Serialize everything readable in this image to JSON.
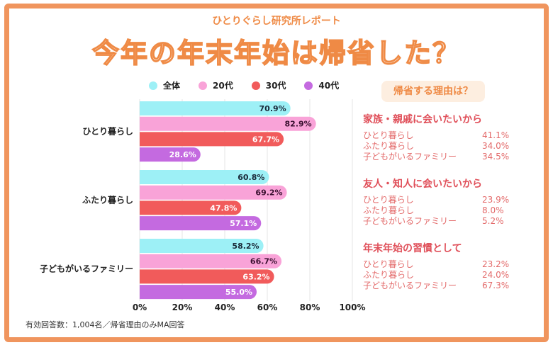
{
  "header": {
    "subtitle": "ひとりぐらし研究所レポート",
    "title": "今年の年末年始は帰省した？"
  },
  "colors": {
    "border": "#f0955e",
    "accent": "#ef8a45",
    "reason_text": "#e0505a"
  },
  "chart_data": {
    "type": "bar",
    "orientation": "horizontal",
    "grid": true,
    "categories": [
      "ひとり暮らし",
      "ふたり暮らし",
      "子どもがいるファミリー"
    ],
    "xlim": [
      0,
      100
    ],
    "ticks": [
      "0%",
      "20%",
      "40%",
      "60%",
      "80%",
      "100%"
    ],
    "legend_position": "top",
    "series": [
      {
        "name": "全体",
        "color": "#9df0f6",
        "values": [
          70.9,
          60.8,
          58.2
        ],
        "labels": [
          "70.9%",
          "60.8%",
          "58.2%"
        ]
      },
      {
        "name": "20代",
        "color": "#f9a3d8",
        "values": [
          82.9,
          69.2,
          66.7
        ],
        "labels": [
          "82.9%",
          "69.2%",
          "66.7%"
        ]
      },
      {
        "name": "30代",
        "color": "#f15b5b",
        "values": [
          67.7,
          47.8,
          63.2
        ],
        "labels": [
          "67.7%",
          "47.8%",
          "63.2%"
        ]
      },
      {
        "name": "40代",
        "color": "#c46ae0",
        "values": [
          28.6,
          57.1,
          55.0
        ],
        "labels": [
          "28.6%",
          "57.1%",
          "55.0%"
        ]
      }
    ]
  },
  "reasons": {
    "title": "帰省する理由は？",
    "groups": [
      {
        "heading": "家族・親戚に会いたいから",
        "rows": [
          {
            "label": "ひとり暮らし",
            "value": "41.1%"
          },
          {
            "label": "ふたり暮らし",
            "value": "34.0%"
          },
          {
            "label": "子どもがいるファミリー",
            "value": "34.5%"
          }
        ]
      },
      {
        "heading": "友人・知人に会いたいから",
        "rows": [
          {
            "label": "ひとり暮らし",
            "value": "23.9%"
          },
          {
            "label": "ふたり暮らし",
            "value": "8.0%"
          },
          {
            "label": "子どもがいるファミリー",
            "value": "5.2%"
          }
        ]
      },
      {
        "heading": "年末年始の習慣として",
        "rows": [
          {
            "label": "ひとり暮らし",
            "value": "23.2%"
          },
          {
            "label": "ふたり暮らし",
            "value": "24.0%"
          },
          {
            "label": "子どもがいるファミリー",
            "value": "67.3%"
          }
        ]
      }
    ]
  },
  "footnote": "有効回答数：1,004名／帰省理由のみMA回答"
}
